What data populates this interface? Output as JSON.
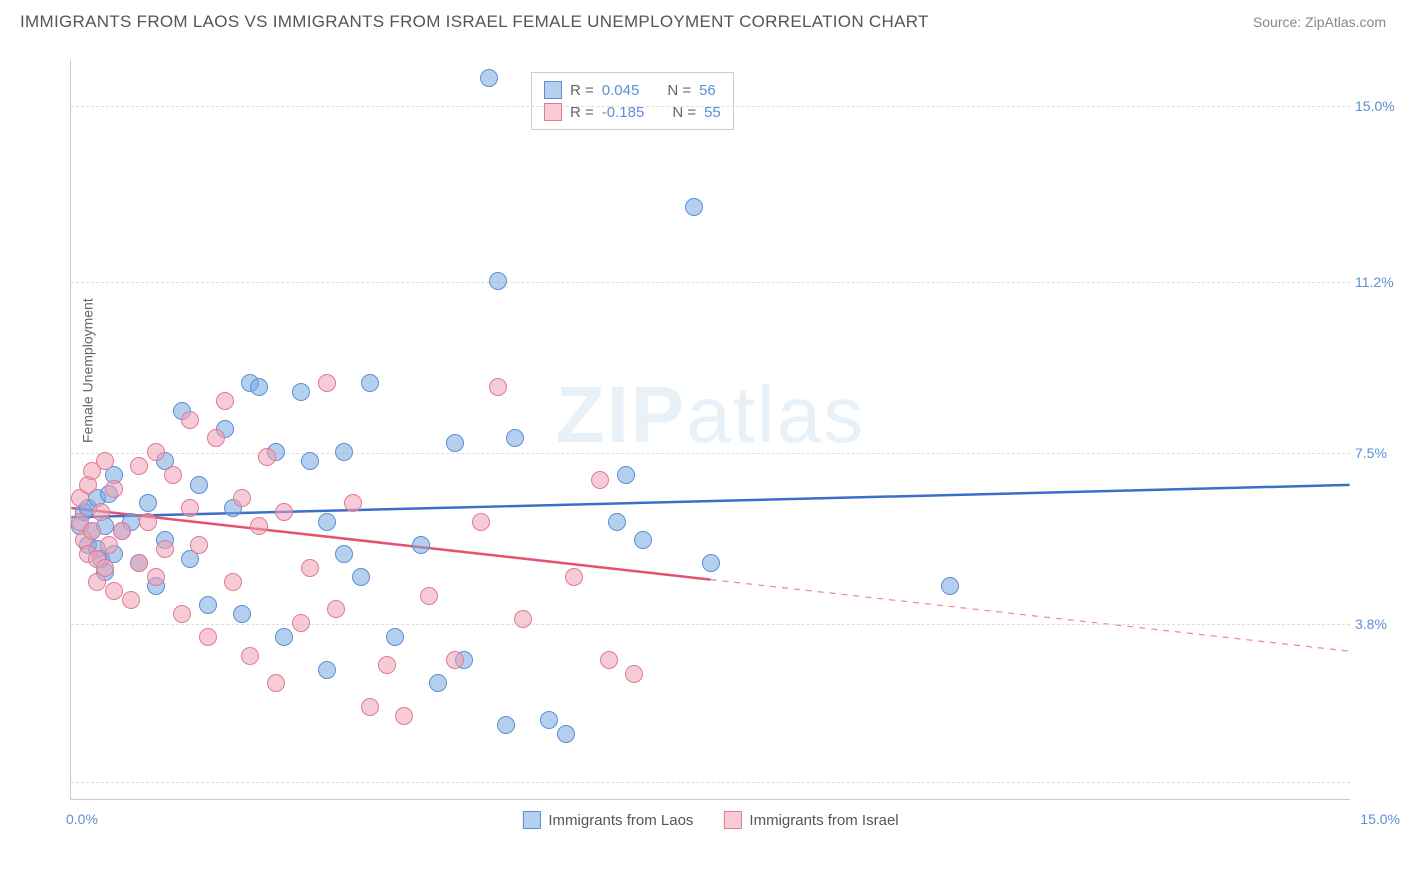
{
  "header": {
    "title": "IMMIGRANTS FROM LAOS VS IMMIGRANTS FROM ISRAEL FEMALE UNEMPLOYMENT CORRELATION CHART",
    "source": "Source: ZipAtlas.com"
  },
  "watermark": {
    "pre": "ZIP",
    "post": "atlas"
  },
  "chart": {
    "type": "scatter",
    "ylabel": "Female Unemployment",
    "xlim": [
      0,
      15
    ],
    "ylim": [
      0,
      16
    ],
    "background_color": "#ffffff",
    "grid_color": "#dddddd",
    "axis_color": "#cccccc",
    "yticks": [
      {
        "val": 3.8,
        "label": "3.8%",
        "color": "#5b8fd6"
      },
      {
        "val": 7.5,
        "label": "7.5%",
        "color": "#5b8fd6"
      },
      {
        "val": 11.2,
        "label": "11.2%",
        "color": "#5b8fd6"
      },
      {
        "val": 15.0,
        "label": "15.0%",
        "color": "#5b8fd6"
      }
    ],
    "xticks": [
      {
        "val": 0,
        "label": "0.0%",
        "color": "#5b8fd6",
        "align": "left"
      },
      {
        "val": 15,
        "label": "15.0%",
        "color": "#5b8fd6",
        "align": "right"
      }
    ],
    "gridlines_y": [
      0.4,
      3.8,
      7.5,
      11.2,
      15.0
    ],
    "series": [
      {
        "name": "Immigrants from Laos",
        "marker_color_fill": "rgba(120,170,225,0.55)",
        "marker_color_stroke": "#5b8fd6",
        "marker_radius": 9,
        "line_color": "#3b6fc9",
        "line_width": 2.5,
        "stats": {
          "R": "0.045",
          "N": "56",
          "color": "#5b8fd6"
        },
        "trend": {
          "x0": 0,
          "y0": 6.1,
          "x1": 15,
          "y1": 6.8,
          "solid_until": 15
        },
        "points": [
          [
            0.1,
            5.9
          ],
          [
            0.15,
            6.2
          ],
          [
            0.2,
            5.5
          ],
          [
            0.2,
            6.3
          ],
          [
            0.25,
            5.8
          ],
          [
            0.3,
            5.4
          ],
          [
            0.3,
            6.5
          ],
          [
            0.35,
            5.2
          ],
          [
            0.4,
            5.9
          ],
          [
            0.4,
            4.9
          ],
          [
            0.45,
            6.6
          ],
          [
            0.5,
            5.3
          ],
          [
            0.5,
            7.0
          ],
          [
            0.6,
            5.8
          ],
          [
            0.7,
            6.0
          ],
          [
            0.8,
            5.1
          ],
          [
            0.9,
            6.4
          ],
          [
            1.0,
            4.6
          ],
          [
            1.1,
            7.3
          ],
          [
            1.1,
            5.6
          ],
          [
            1.3,
            8.4
          ],
          [
            1.4,
            5.2
          ],
          [
            1.5,
            6.8
          ],
          [
            1.6,
            4.2
          ],
          [
            1.8,
            8.0
          ],
          [
            1.9,
            6.3
          ],
          [
            2.0,
            4.0
          ],
          [
            2.1,
            9.0
          ],
          [
            2.2,
            8.9
          ],
          [
            2.4,
            7.5
          ],
          [
            2.5,
            3.5
          ],
          [
            2.7,
            8.8
          ],
          [
            2.8,
            7.3
          ],
          [
            3.0,
            6.0
          ],
          [
            3.0,
            2.8
          ],
          [
            3.2,
            5.3
          ],
          [
            3.2,
            7.5
          ],
          [
            3.4,
            4.8
          ],
          [
            3.5,
            9.0
          ],
          [
            3.8,
            3.5
          ],
          [
            4.1,
            5.5
          ],
          [
            4.3,
            2.5
          ],
          [
            4.5,
            7.7
          ],
          [
            4.6,
            3.0
          ],
          [
            4.9,
            15.6
          ],
          [
            5.0,
            11.2
          ],
          [
            5.1,
            1.6
          ],
          [
            5.2,
            7.8
          ],
          [
            5.6,
            1.7
          ],
          [
            5.8,
            1.4
          ],
          [
            6.4,
            6.0
          ],
          [
            6.5,
            7.0
          ],
          [
            6.7,
            5.6
          ],
          [
            7.3,
            12.8
          ],
          [
            7.5,
            5.1
          ],
          [
            10.3,
            4.6
          ]
        ]
      },
      {
        "name": "Immigrants from Israel",
        "marker_color_fill": "rgba(240,160,180,0.55)",
        "marker_color_stroke": "#e27a95",
        "marker_radius": 9,
        "line_color": "#e5516f",
        "line_width": 2.5,
        "stats": {
          "R": "-0.185",
          "N": "55",
          "color": "#5b8fd6"
        },
        "trend": {
          "x0": 0,
          "y0": 6.3,
          "x1": 15,
          "y1": 3.2,
          "solid_until": 7.5
        },
        "points": [
          [
            0.1,
            6.0
          ],
          [
            0.1,
            6.5
          ],
          [
            0.15,
            5.6
          ],
          [
            0.2,
            5.3
          ],
          [
            0.2,
            6.8
          ],
          [
            0.25,
            5.8
          ],
          [
            0.25,
            7.1
          ],
          [
            0.3,
            5.2
          ],
          [
            0.3,
            4.7
          ],
          [
            0.35,
            6.2
          ],
          [
            0.4,
            5.0
          ],
          [
            0.4,
            7.3
          ],
          [
            0.45,
            5.5
          ],
          [
            0.5,
            4.5
          ],
          [
            0.5,
            6.7
          ],
          [
            0.6,
            5.8
          ],
          [
            0.7,
            4.3
          ],
          [
            0.8,
            7.2
          ],
          [
            0.8,
            5.1
          ],
          [
            0.9,
            6.0
          ],
          [
            1.0,
            7.5
          ],
          [
            1.0,
            4.8
          ],
          [
            1.1,
            5.4
          ],
          [
            1.2,
            7.0
          ],
          [
            1.3,
            4.0
          ],
          [
            1.4,
            8.2
          ],
          [
            1.4,
            6.3
          ],
          [
            1.5,
            5.5
          ],
          [
            1.6,
            3.5
          ],
          [
            1.7,
            7.8
          ],
          [
            1.8,
            8.6
          ],
          [
            1.9,
            4.7
          ],
          [
            2.0,
            6.5
          ],
          [
            2.1,
            3.1
          ],
          [
            2.2,
            5.9
          ],
          [
            2.3,
            7.4
          ],
          [
            2.4,
            2.5
          ],
          [
            2.5,
            6.2
          ],
          [
            2.7,
            3.8
          ],
          [
            2.8,
            5.0
          ],
          [
            3.0,
            9.0
          ],
          [
            3.1,
            4.1
          ],
          [
            3.3,
            6.4
          ],
          [
            3.5,
            2.0
          ],
          [
            3.7,
            2.9
          ],
          [
            3.9,
            1.8
          ],
          [
            4.2,
            4.4
          ],
          [
            4.5,
            3.0
          ],
          [
            4.8,
            6.0
          ],
          [
            5.0,
            8.9
          ],
          [
            5.3,
            3.9
          ],
          [
            5.9,
            4.8
          ],
          [
            6.2,
            6.9
          ],
          [
            6.3,
            3.0
          ],
          [
            6.6,
            2.7
          ]
        ]
      }
    ],
    "legend_labels": [
      "Immigrants from Laos",
      "Immigrants from Israel"
    ],
    "stats_labels": {
      "R": "R =",
      "N": "N ="
    }
  }
}
